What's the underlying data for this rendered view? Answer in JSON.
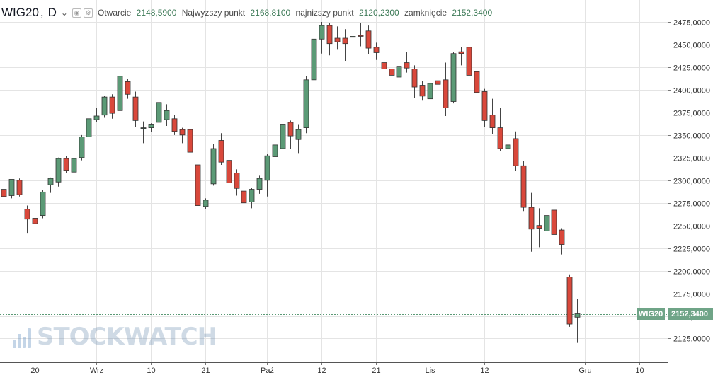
{
  "header": {
    "symbol": "WIG20",
    "separator": ",",
    "interval": "D",
    "chevron": "⌄",
    "open_label": "Otwarcie",
    "open_value": "2148,5900",
    "high_label": "Najwyzszy punkt",
    "high_value": "2168,8100",
    "low_label": "najnizszy punkt",
    "low_value": "2120,2300",
    "close_label": "zamknięcie",
    "close_value": "2152,3400"
  },
  "watermark": "STOCKWATCH",
  "last_price": {
    "label": "WIG20",
    "value": "2152,3400"
  },
  "colors": {
    "up": "#5b9a76",
    "down": "#d9483b",
    "grid": "#e4e4e4",
    "lastline": "#5b9a76"
  },
  "chart_data": {
    "type": "candlestick",
    "title": "WIG20, D",
    "ylim": [
      2100,
      2490
    ],
    "y_ticks": [
      {
        "value": 2125,
        "label": "2125,0000"
      },
      {
        "value": 2150,
        "label": "2150,0000"
      },
      {
        "value": 2175,
        "label": "2175,0000"
      },
      {
        "value": 2200,
        "label": "2200,0000"
      },
      {
        "value": 2225,
        "label": "2225,0000"
      },
      {
        "value": 2250,
        "label": "2250,0000"
      },
      {
        "value": 2275,
        "label": "2275,0000"
      },
      {
        "value": 2300,
        "label": "2300,0000"
      },
      {
        "value": 2325,
        "label": "2325,0000"
      },
      {
        "value": 2350,
        "label": "2350,0000"
      },
      {
        "value": 2375,
        "label": "2375,0000"
      },
      {
        "value": 2400,
        "label": "2400,0000"
      },
      {
        "value": 2425,
        "label": "2425,0000"
      },
      {
        "value": 2450,
        "label": "2450,0000"
      },
      {
        "value": 2475,
        "label": "2475,0000"
      }
    ],
    "x_ticks": [
      {
        "index": 4,
        "label": "20"
      },
      {
        "index": 12,
        "label": "Wrz"
      },
      {
        "index": 19,
        "label": "10"
      },
      {
        "index": 26,
        "label": "21"
      },
      {
        "index": 34,
        "label": "Paź"
      },
      {
        "index": 41,
        "label": "12"
      },
      {
        "index": 48,
        "label": "21"
      },
      {
        "index": 55,
        "label": "Lis"
      },
      {
        "index": 62,
        "label": "12"
      },
      {
        "index": 75,
        "label": "Gru"
      },
      {
        "index": 82,
        "label": "10"
      }
    ],
    "candles": [
      {
        "o": 2290,
        "h": 2298,
        "l": 2281,
        "c": 2282
      },
      {
        "o": 2283,
        "h": 2301,
        "l": 2280,
        "c": 2301
      },
      {
        "o": 2300,
        "h": 2302,
        "l": 2282,
        "c": 2284
      },
      {
        "o": 2268,
        "h": 2272,
        "l": 2241,
        "c": 2257
      },
      {
        "o": 2258,
        "h": 2262,
        "l": 2247,
        "c": 2252
      },
      {
        "o": 2261,
        "h": 2289,
        "l": 2258,
        "c": 2287
      },
      {
        "o": 2295,
        "h": 2303,
        "l": 2286,
        "c": 2302
      },
      {
        "o": 2298,
        "h": 2325,
        "l": 2293,
        "c": 2324
      },
      {
        "o": 2324,
        "h": 2327,
        "l": 2308,
        "c": 2311
      },
      {
        "o": 2309,
        "h": 2326,
        "l": 2298,
        "c": 2324
      },
      {
        "o": 2325,
        "h": 2350,
        "l": 2322,
        "c": 2348
      },
      {
        "o": 2348,
        "h": 2370,
        "l": 2345,
        "c": 2368
      },
      {
        "o": 2367,
        "h": 2380,
        "l": 2364,
        "c": 2371
      },
      {
        "o": 2372,
        "h": 2393,
        "l": 2369,
        "c": 2392
      },
      {
        "o": 2392,
        "h": 2395,
        "l": 2368,
        "c": 2374
      },
      {
        "o": 2377,
        "h": 2417,
        "l": 2376,
        "c": 2415
      },
      {
        "o": 2409,
        "h": 2412,
        "l": 2390,
        "c": 2395
      },
      {
        "o": 2392,
        "h": 2398,
        "l": 2359,
        "c": 2366
      },
      {
        "o": 2358,
        "h": 2365,
        "l": 2341,
        "c": 2358
      },
      {
        "o": 2358,
        "h": 2363,
        "l": 2353,
        "c": 2362
      },
      {
        "o": 2364,
        "h": 2388,
        "l": 2360,
        "c": 2386
      },
      {
        "o": 2367,
        "h": 2384,
        "l": 2360,
        "c": 2377
      },
      {
        "o": 2368,
        "h": 2372,
        "l": 2350,
        "c": 2354
      },
      {
        "o": 2356,
        "h": 2358,
        "l": 2341,
        "c": 2350
      },
      {
        "o": 2356,
        "h": 2360,
        "l": 2324,
        "c": 2331
      },
      {
        "o": 2317,
        "h": 2320,
        "l": 2260,
        "c": 2272
      },
      {
        "o": 2271,
        "h": 2280,
        "l": 2268,
        "c": 2278
      },
      {
        "o": 2296,
        "h": 2340,
        "l": 2294,
        "c": 2335
      },
      {
        "o": 2344,
        "h": 2352,
        "l": 2317,
        "c": 2320
      },
      {
        "o": 2322,
        "h": 2328,
        "l": 2294,
        "c": 2297
      },
      {
        "o": 2308,
        "h": 2312,
        "l": 2283,
        "c": 2291
      },
      {
        "o": 2288,
        "h": 2293,
        "l": 2271,
        "c": 2275
      },
      {
        "o": 2276,
        "h": 2292,
        "l": 2269,
        "c": 2290
      },
      {
        "o": 2290,
        "h": 2305,
        "l": 2285,
        "c": 2302
      },
      {
        "o": 2300,
        "h": 2329,
        "l": 2282,
        "c": 2327
      },
      {
        "o": 2326,
        "h": 2342,
        "l": 2300,
        "c": 2339
      },
      {
        "o": 2335,
        "h": 2366,
        "l": 2320,
        "c": 2362
      },
      {
        "o": 2364,
        "h": 2366,
        "l": 2335,
        "c": 2349
      },
      {
        "o": 2345,
        "h": 2362,
        "l": 2330,
        "c": 2356
      },
      {
        "o": 2358,
        "h": 2415,
        "l": 2352,
        "c": 2411
      },
      {
        "o": 2411,
        "h": 2461,
        "l": 2406,
        "c": 2456
      },
      {
        "o": 2456,
        "h": 2475,
        "l": 2440,
        "c": 2471
      },
      {
        "o": 2471,
        "h": 2474,
        "l": 2438,
        "c": 2451
      },
      {
        "o": 2457,
        "h": 2470,
        "l": 2445,
        "c": 2453
      },
      {
        "o": 2457,
        "h": 2467,
        "l": 2432,
        "c": 2451
      },
      {
        "o": 2458,
        "h": 2461,
        "l": 2451,
        "c": 2459
      },
      {
        "o": 2460,
        "h": 2474,
        "l": 2448,
        "c": 2459
      },
      {
        "o": 2465,
        "h": 2471,
        "l": 2439,
        "c": 2446
      },
      {
        "o": 2447,
        "h": 2452,
        "l": 2433,
        "c": 2441
      },
      {
        "o": 2430,
        "h": 2435,
        "l": 2418,
        "c": 2423
      },
      {
        "o": 2423,
        "h": 2429,
        "l": 2414,
        "c": 2416
      },
      {
        "o": 2414,
        "h": 2432,
        "l": 2411,
        "c": 2426
      },
      {
        "o": 2430,
        "h": 2442,
        "l": 2419,
        "c": 2424
      },
      {
        "o": 2423,
        "h": 2427,
        "l": 2391,
        "c": 2403
      },
      {
        "o": 2405,
        "h": 2410,
        "l": 2388,
        "c": 2393
      },
      {
        "o": 2390,
        "h": 2415,
        "l": 2380,
        "c": 2407
      },
      {
        "o": 2410,
        "h": 2426,
        "l": 2401,
        "c": 2406
      },
      {
        "o": 2411,
        "h": 2430,
        "l": 2371,
        "c": 2380
      },
      {
        "o": 2387,
        "h": 2442,
        "l": 2385,
        "c": 2440
      },
      {
        "o": 2442,
        "h": 2447,
        "l": 2427,
        "c": 2440
      },
      {
        "o": 2447,
        "h": 2449,
        "l": 2413,
        "c": 2416
      },
      {
        "o": 2420,
        "h": 2423,
        "l": 2392,
        "c": 2397
      },
      {
        "o": 2398,
        "h": 2401,
        "l": 2359,
        "c": 2366
      },
      {
        "o": 2372,
        "h": 2390,
        "l": 2351,
        "c": 2358
      },
      {
        "o": 2358,
        "h": 2380,
        "l": 2332,
        "c": 2335
      },
      {
        "o": 2335,
        "h": 2342,
        "l": 2328,
        "c": 2339
      },
      {
        "o": 2346,
        "h": 2354,
        "l": 2310,
        "c": 2316
      },
      {
        "o": 2316,
        "h": 2321,
        "l": 2266,
        "c": 2270
      },
      {
        "o": 2270,
        "h": 2286,
        "l": 2221,
        "c": 2246
      },
      {
        "o": 2250,
        "h": 2269,
        "l": 2226,
        "c": 2247
      },
      {
        "o": 2244,
        "h": 2262,
        "l": 2224,
        "c": 2261
      },
      {
        "o": 2267,
        "h": 2276,
        "l": 2221,
        "c": 2240
      },
      {
        "o": 2245,
        "h": 2247,
        "l": 2218,
        "c": 2229
      },
      {
        "o": 2193,
        "h": 2196,
        "l": 2138,
        "c": 2141
      },
      {
        "o": 2148.59,
        "h": 2168.81,
        "l": 2120.23,
        "c": 2152.34
      }
    ]
  }
}
